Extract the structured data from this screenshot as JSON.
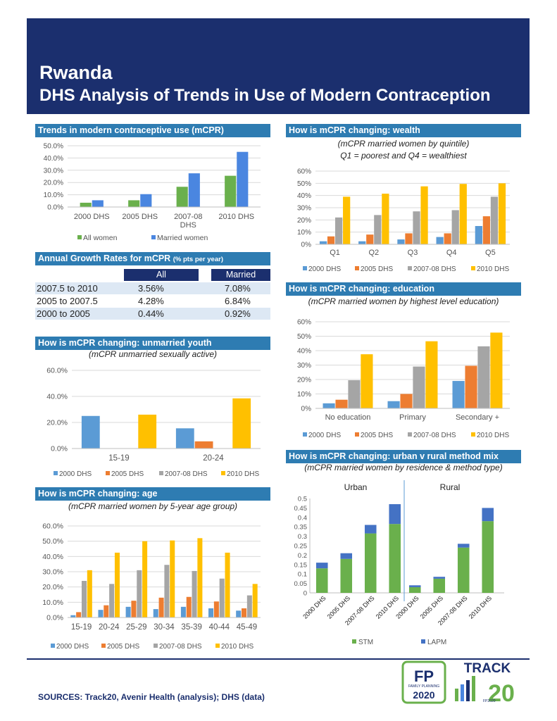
{
  "header": {
    "country": "Rwanda",
    "subtitle": "DHS Analysis of Trends in Use of Modern Contraception"
  },
  "sections": {
    "trends": "Trends in modern contraceptive use (mCPR)",
    "growth": "Annual Growth Rates for mCPR",
    "growth_note": "(% pts per year)",
    "youth": "How is mCPR changing: unmarried youth",
    "youth_sub": "(mCPR unmarried sexually active)",
    "age": "How is mCPR changing: age",
    "age_sub": "(mCPR married women by 5-year age group)",
    "wealth": "How is mCPR changing: wealth",
    "wealth_sub1": "(mCPR married women by quintile)",
    "wealth_sub2": "Q1 = poorest and Q4 = wealthiest",
    "education": "How is mCPR changing: education",
    "education_sub": "(mCPR married women by highest level education)",
    "mix": "How is mCPR changing: urban v rural method mix",
    "mix_sub": "(mCPR married women by residence & method type)"
  },
  "growth_table": {
    "headers": [
      "All",
      "Married"
    ],
    "rows": [
      {
        "period": "2007.5 to 2010",
        "all": "3.56%",
        "married": "7.08%"
      },
      {
        "period": "2005 to 2007.5",
        "all": "4.28%",
        "married": "6.84%"
      },
      {
        "period": "2000 to 2005",
        "all": "0.44%",
        "married": "0.92%"
      }
    ]
  },
  "colors": {
    "navy": "#1b2f6e",
    "section": "#2e7cb2",
    "green": "#6ab04c",
    "blue": "#4a86e0",
    "s2000": "#5b9bd5",
    "s2005": "#ed7d31",
    "s2007": "#a5a5a5",
    "s2010": "#ffc000",
    "stm": "#6ab04c",
    "lapm": "#4472c4"
  },
  "chart_data": [
    {
      "id": "trends",
      "type": "bar",
      "categories": [
        "2000 DHS",
        "2005 DHS",
        "2007-08 DHS",
        "2010 DHS"
      ],
      "series": [
        {
          "name": "All women",
          "values": [
            3.5,
            5.5,
            16.5,
            25.5
          ]
        },
        {
          "name": "Married women",
          "values": [
            5.5,
            10.5,
            27.5,
            45.0
          ]
        }
      ],
      "yticks": [
        "0.0%",
        "10.0%",
        "20.0%",
        "30.0%",
        "40.0%",
        "50.0%"
      ],
      "ylim": [
        0,
        50
      ]
    },
    {
      "id": "youth",
      "type": "bar",
      "categories": [
        "15-19",
        "20-24"
      ],
      "series": [
        {
          "name": "2000 DHS",
          "values": [
            25,
            15.5
          ]
        },
        {
          "name": "2005 DHS",
          "values": [
            0,
            5.5
          ]
        },
        {
          "name": "2007-08 DHS",
          "values": [
            0,
            0
          ]
        },
        {
          "name": "2010 DHS",
          "values": [
            26,
            38.5
          ]
        }
      ],
      "yticks": [
        "0.0%",
        "20.0%",
        "40.0%",
        "60.0%"
      ],
      "ylim": [
        0,
        60
      ]
    },
    {
      "id": "age",
      "type": "bar",
      "categories": [
        "15-19",
        "20-24",
        "25-29",
        "30-34",
        "35-39",
        "40-44",
        "45-49"
      ],
      "series": [
        {
          "name": "2000 DHS",
          "values": [
            1.5,
            5,
            7,
            5.5,
            7,
            6,
            4.5
          ]
        },
        {
          "name": "2005 DHS",
          "values": [
            3.5,
            8,
            11,
            13,
            13.5,
            10.5,
            6
          ]
        },
        {
          "name": "2007-08 DHS",
          "values": [
            24,
            22,
            31,
            34.5,
            30.5,
            25.5,
            14.5
          ]
        },
        {
          "name": "2010 DHS",
          "values": [
            31,
            42.5,
            50,
            50.5,
            52,
            42.5,
            22
          ]
        }
      ],
      "yticks": [
        "0.0%",
        "10.0%",
        "20.0%",
        "30.0%",
        "40.0%",
        "50.0%",
        "60.0%"
      ],
      "ylim": [
        0,
        60
      ]
    },
    {
      "id": "wealth",
      "type": "bar",
      "categories": [
        "Q1",
        "Q2",
        "Q3",
        "Q4",
        "Q5"
      ],
      "series": [
        {
          "name": "2000 DHS",
          "values": [
            2.5,
            2.5,
            4,
            6,
            15
          ]
        },
        {
          "name": "2005 DHS",
          "values": [
            6.5,
            8,
            9,
            9,
            23
          ]
        },
        {
          "name": "2007-08 DHS",
          "values": [
            22,
            24,
            27,
            28,
            39
          ]
        },
        {
          "name": "2010 DHS",
          "values": [
            39,
            41.5,
            47.5,
            49.5,
            50
          ]
        }
      ],
      "yticks": [
        "0%",
        "10%",
        "20%",
        "30%",
        "40%",
        "50%",
        "60%"
      ],
      "ylim": [
        0,
        60
      ]
    },
    {
      "id": "education",
      "type": "bar",
      "categories": [
        "No education",
        "Primary",
        "Secondary +"
      ],
      "series": [
        {
          "name": "2000 DHS",
          "values": [
            3.5,
            5,
            19
          ]
        },
        {
          "name": "2005 DHS",
          "values": [
            6,
            10,
            29.5
          ]
        },
        {
          "name": "2007-08 DHS",
          "values": [
            19.5,
            29,
            43
          ]
        },
        {
          "name": "2010 DHS",
          "values": [
            37.5,
            46.5,
            52.5
          ]
        }
      ],
      "yticks": [
        "0%",
        "10%",
        "20%",
        "30%",
        "40%",
        "50%",
        "60%"
      ],
      "ylim": [
        0,
        60
      ]
    },
    {
      "id": "mix",
      "type": "bar",
      "stacked": true,
      "groups": [
        "Urban",
        "Rural"
      ],
      "categories": [
        "2000 DHS",
        "2005 DHS",
        "2007-08 DHS",
        "2010 DHS",
        "2000 DHS",
        "2005 DHS",
        "2007-08 DHS",
        "2010 DHS"
      ],
      "series": [
        {
          "name": "STM",
          "values": [
            0.13,
            0.18,
            0.315,
            0.365,
            0.03,
            0.075,
            0.24,
            0.38
          ]
        },
        {
          "name": "LAPM",
          "values": [
            0.03,
            0.03,
            0.045,
            0.105,
            0.01,
            0.01,
            0.02,
            0.07
          ]
        }
      ],
      "yticks": [
        "0",
        "0.05",
        "0.1",
        "0.15",
        "0.2",
        "0.25",
        "0.3",
        "0.35",
        "0.4",
        "0.45",
        "0.5"
      ],
      "ylim": [
        0,
        0.5
      ]
    }
  ],
  "footer": {
    "sources": "SOURCES: Track20, Avenir Health (analysis); DHS (data)",
    "fp_logo": "FP 2020 FAMILY PLANNING",
    "track_logo": "TRACK 20 FP2020"
  }
}
